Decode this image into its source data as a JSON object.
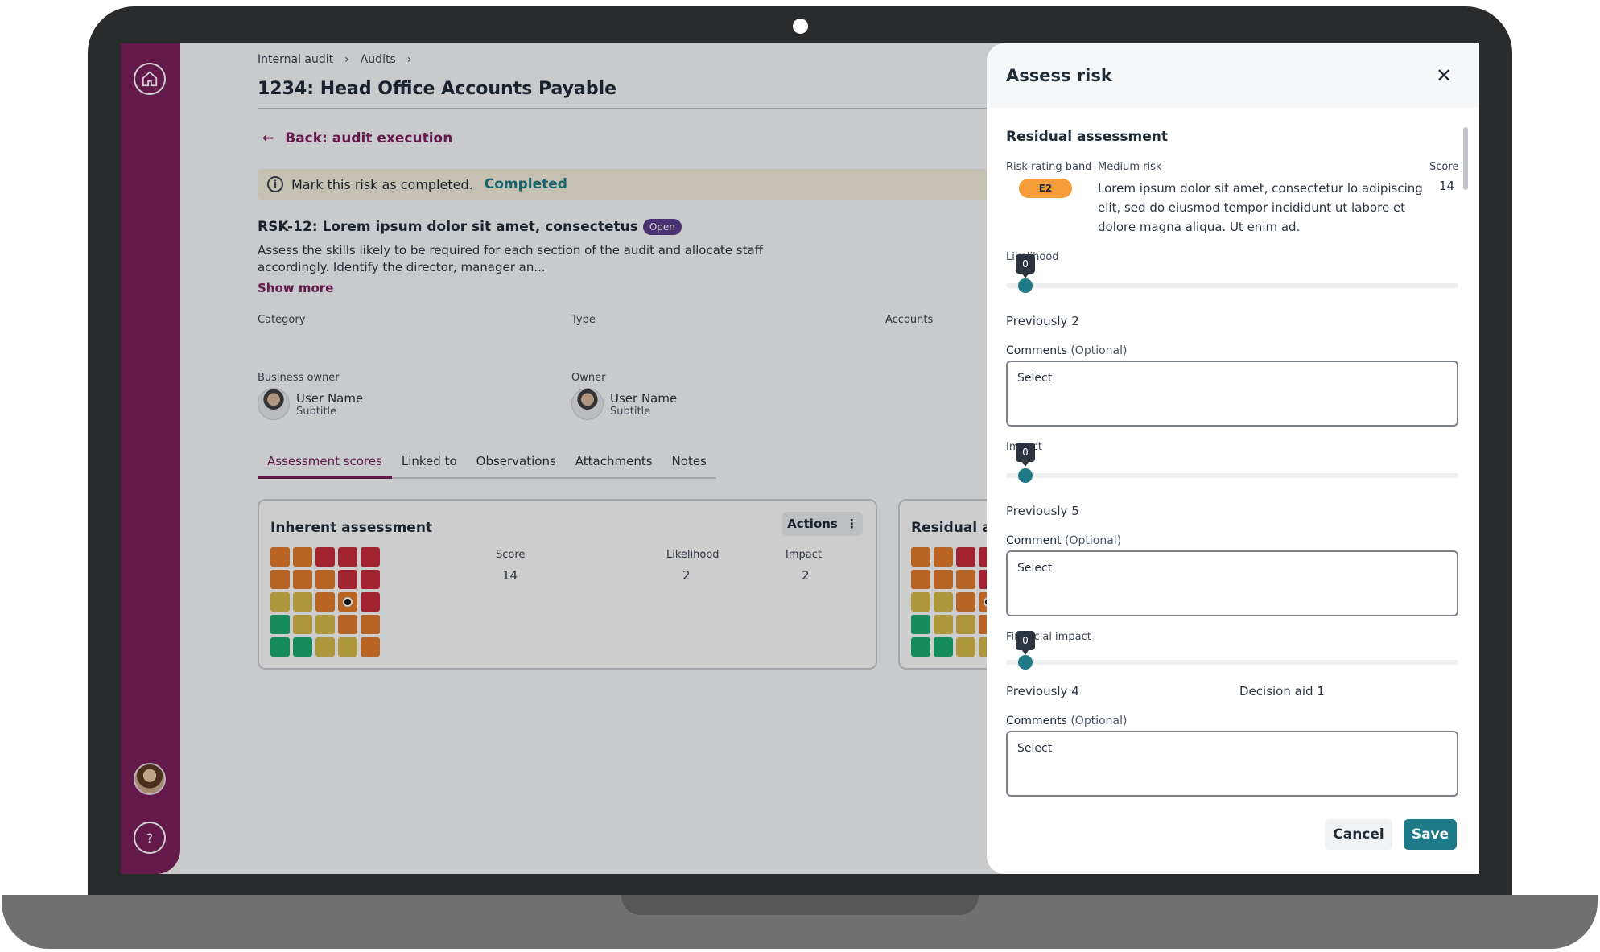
{
  "breadcrumb": [
    "Internal audit",
    "Audits"
  ],
  "page_title": "1234: Head Office Accounts Payable",
  "back_label": "Back: audit execution",
  "completion": {
    "text": "Mark this risk as completed.",
    "status": "Completed"
  },
  "risk": {
    "title": "RSK-12: Lorem ipsum dolor sit amet, consectetus",
    "badge": "Open",
    "description": "Assess the skills likely to be required for each section of the audit and allocate staff accordingly. Identify the director, manager an...",
    "show_more": "Show more"
  },
  "meta": {
    "category_label": "Category",
    "type_label": "Type",
    "accounts_label": "Accounts",
    "business_owner_label": "Business owner",
    "owner_label": "Owner",
    "business_owner": {
      "name": "User Name",
      "subtitle": "Subtitle"
    },
    "owner": {
      "name": "User Name",
      "subtitle": "Subtitle"
    }
  },
  "tabs": [
    "Assessment scores",
    "Linked to",
    "Observations",
    "Attachments",
    "Notes"
  ],
  "inherent": {
    "title": "Inherent assessment",
    "actions_label": "Actions",
    "score_label": "Score",
    "score": "14",
    "likelihood_label": "Likelihood",
    "likelihood": "2",
    "impact_label": "Impact",
    "impact": "2"
  },
  "residual_card_title": "Residual assessment",
  "heatmap": {
    "colors": {
      "O": "#e07b2c",
      "R": "#c42b3a",
      "Y": "#d4b848",
      "G": "#1bab72"
    },
    "rows": [
      [
        "O",
        "O",
        "R",
        "R",
        "R"
      ],
      [
        "O",
        "O",
        "O",
        "R",
        "R"
      ],
      [
        "Y",
        "Y",
        "O",
        "O",
        "R"
      ],
      [
        "G",
        "Y",
        "Y",
        "O",
        "O"
      ],
      [
        "G",
        "G",
        "Y",
        "Y",
        "O"
      ]
    ],
    "marker": {
      "row": 2,
      "col": 3
    }
  },
  "panel": {
    "title": "Assess risk",
    "section_title": "Residual assessment",
    "risk_rating_band_label": "Risk rating band",
    "band_value": "E2",
    "band_name": "Medium risk",
    "band_description": "Lorem ipsum dolor sit amet, consectetur lo adipiscing elit, sed do eiusmod tempor incididunt ut labore et dolore magna aliqua. Ut enim ad.",
    "score_label": "Score",
    "score": "14",
    "sliders": [
      {
        "label": "Likelihood",
        "value": "0",
        "previously": "Previously 2",
        "comment_label": "Comments",
        "optional": "(Optional)",
        "placeholder": "Select"
      },
      {
        "label": "Impact",
        "value": "0",
        "previously": "Previously 5",
        "comment_label": "Comment",
        "optional": "(Optional)",
        "placeholder": "Select"
      },
      {
        "label": "Financial impact",
        "value": "0",
        "previously": "Previously 4",
        "comment_label": "Comments",
        "optional": "(Optional)",
        "placeholder": "Select"
      }
    ],
    "decision_aid": "Decision aid 1",
    "cancel_label": "Cancel",
    "save_label": "Save"
  },
  "colors": {
    "sidebar": "#7a1f5c",
    "accent": "#1e7a87",
    "band": "#f39c38"
  }
}
